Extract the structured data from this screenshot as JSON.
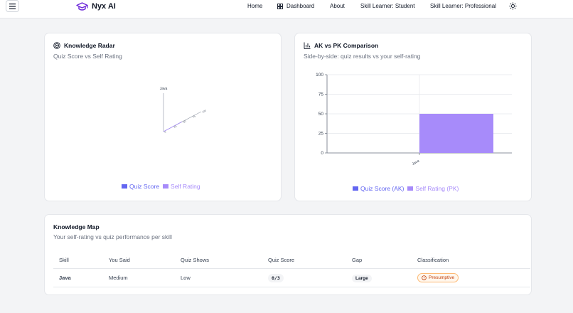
{
  "nav": {
    "brand": "Nyx AI",
    "links": {
      "home": "Home",
      "dashboard": "Dashboard",
      "about": "About",
      "student": "Skill Learner: Student",
      "professional": "Skill Learner: Professional"
    },
    "icons": {
      "menu": "menu-icon",
      "logo": "graduation-cap-icon",
      "dashboard": "grid-icon",
      "theme": "sun-icon"
    }
  },
  "radar_card": {
    "title": "Knowledge Radar",
    "subtitle": "Quiz Score vs Self Rating",
    "icon": "radar-icon",
    "axis_label": "Java",
    "legend": [
      "Quiz Score",
      "Self Rating"
    ]
  },
  "compare_card": {
    "title": "AK vs PK Comparison",
    "subtitle": "Side-by-side: quiz results vs your self-rating",
    "icon": "bar-chart-icon",
    "legend": [
      "Quiz Score (AK)",
      "Self Rating (PK)"
    ]
  },
  "chart_data": [
    {
      "type": "radar",
      "axes": [
        "Java"
      ],
      "series": [
        {
          "name": "Quiz Score",
          "values": [
            0
          ]
        },
        {
          "name": "Self Rating",
          "values": [
            50
          ]
        }
      ],
      "r_ticks": [
        0,
        25,
        50,
        75,
        100
      ]
    },
    {
      "type": "bar",
      "categories": [
        "Java"
      ],
      "series": [
        {
          "name": "Quiz Score (AK)",
          "values": [
            0
          ]
        },
        {
          "name": "Self Rating (PK)",
          "values": [
            50
          ]
        }
      ],
      "ylim": [
        0,
        100
      ],
      "yticks": [
        0,
        25,
        50,
        75,
        100
      ],
      "colors": {
        "ak": "#6366f1",
        "pk": "#a78bfa"
      }
    }
  ],
  "knowledge_map": {
    "title": "Knowledge Map",
    "subtitle": "Your self-rating vs quiz performance per skill",
    "columns": [
      "Skill",
      "You Said",
      "Quiz Shows",
      "Quiz Score",
      "Gap",
      "Classification"
    ],
    "rows": [
      {
        "skill": "Java",
        "you_said": "Medium",
        "quiz_shows": "Low",
        "quiz_score": "0/3",
        "gap": "Large",
        "classification": "Presumptive",
        "classification_icon": "alert-circle-icon"
      }
    ]
  },
  "colors": {
    "quiz": "#6366f1",
    "self": "#a78bfa",
    "accent": "#4f46e5",
    "warn": "#c2410c"
  }
}
